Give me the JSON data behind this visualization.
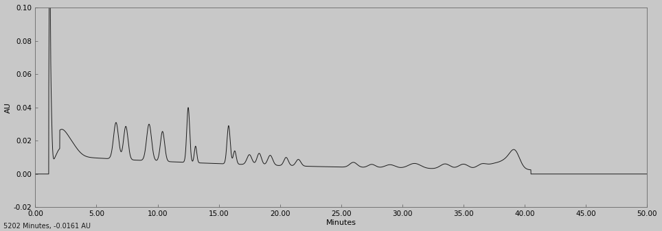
{
  "background_color": "#c8c8c8",
  "plot_bg_color": "#c8c8c8",
  "line_color": "#1a1a1a",
  "line_width": 0.7,
  "xlim": [
    0.0,
    50.0
  ],
  "ylim": [
    -0.02,
    0.1
  ],
  "xlabel": "Minutes",
  "ylabel": "AU",
  "xlabel_fontsize": 8,
  "ylabel_fontsize": 8,
  "tick_fontsize": 7.5,
  "xticks": [
    0.0,
    5.0,
    10.0,
    15.0,
    20.0,
    25.0,
    30.0,
    35.0,
    40.0,
    45.0,
    50.0
  ],
  "yticks": [
    -0.02,
    0.0,
    0.02,
    0.04,
    0.06,
    0.08,
    0.1
  ],
  "footer_text": "5202 Minutes, -0.0161 AU",
  "footer_fontsize": 7
}
